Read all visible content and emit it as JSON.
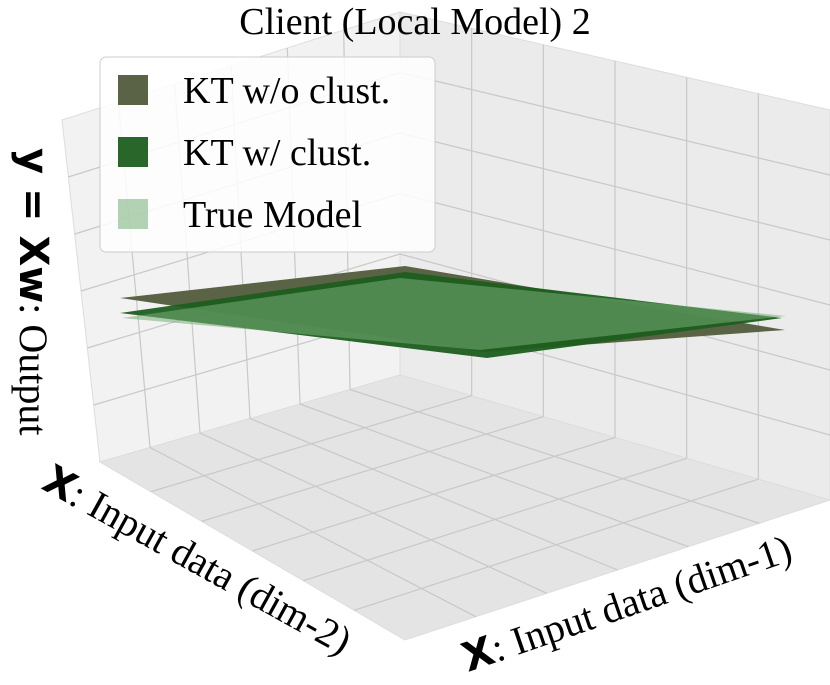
{
  "chart_data": {
    "type": "surface3d",
    "title": "Client (Local Model) 2",
    "xlabel": {
      "symbol": "X",
      "text": ": Input data (dim-1)"
    },
    "ylabel": {
      "symbol": "X",
      "text": ": Input data (dim-2)"
    },
    "zlabel": {
      "symbol": "y = Xw",
      "text": ": Output"
    },
    "series": [
      {
        "name": "KT w/o clust.",
        "color": "#5b6347"
      },
      {
        "name": "KT w/ clust.",
        "color": "#1d5e1d"
      },
      {
        "name": "True Model",
        "color": "#76ad76"
      }
    ],
    "grid": true
  }
}
